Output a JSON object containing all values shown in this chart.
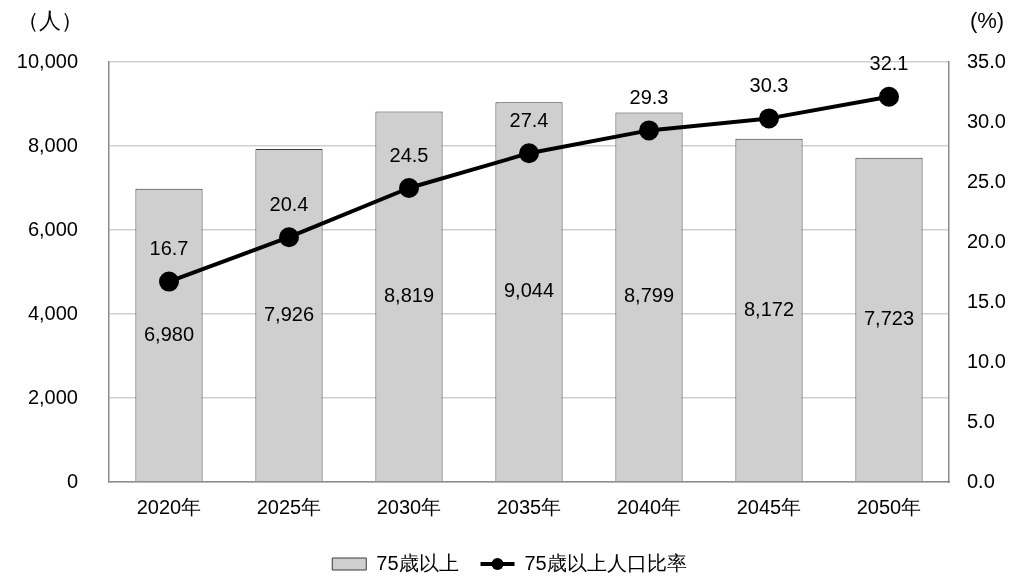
{
  "chart_data": {
    "type": "bar",
    "ylabel": "（人）",
    "y2label": "(%)",
    "categories": [
      "2020年",
      "2025年",
      "2030年",
      "2035年",
      "2040年",
      "2045年",
      "2050年"
    ],
    "series": [
      {
        "name": "75歳以上",
        "type": "bar",
        "color": "#cfcfcf",
        "values": [
          6980,
          7926,
          8819,
          9044,
          8799,
          8172,
          7723
        ],
        "value_labels": [
          "6,980",
          "7,926",
          "8,819",
          "9,044",
          "8,799",
          "8,172",
          "7,723"
        ]
      },
      {
        "name": "75歳以上人口比率",
        "type": "line",
        "axis": "y2",
        "color": "#000000",
        "values": [
          16.7,
          20.4,
          24.5,
          27.4,
          29.3,
          30.3,
          32.1
        ],
        "value_labels": [
          "16.7",
          "20.4",
          "24.5",
          "27.4",
          "29.3",
          "30.3",
          "32.1"
        ]
      }
    ],
    "ylim": [
      0,
      10000
    ],
    "yticks": [
      0,
      {
        "value": 2000,
        "label": "2,000"
      },
      {
        "value": 4000,
        "label": "4,000"
      },
      {
        "value": 6000,
        "label": "6,000"
      },
      {
        "value": 8000,
        "label": "8,000"
      },
      {
        "value": 10000,
        "label": "10,000"
      }
    ],
    "y2lim": [
      0,
      35
    ],
    "y2ticks": [
      {
        "value": 0,
        "label": "0.0"
      },
      {
        "value": 5,
        "label": "5.0"
      },
      {
        "value": 10,
        "label": "10.0"
      },
      {
        "value": 15,
        "label": "15.0"
      },
      {
        "value": 20,
        "label": "20.0"
      },
      {
        "value": 25,
        "label": "25.0"
      },
      {
        "value": 30,
        "label": "30.0"
      },
      {
        "value": 35,
        "label": "35.0"
      }
    ],
    "grid": "y",
    "legend": "bottom",
    "marker": "circle",
    "line_style": "solid"
  }
}
